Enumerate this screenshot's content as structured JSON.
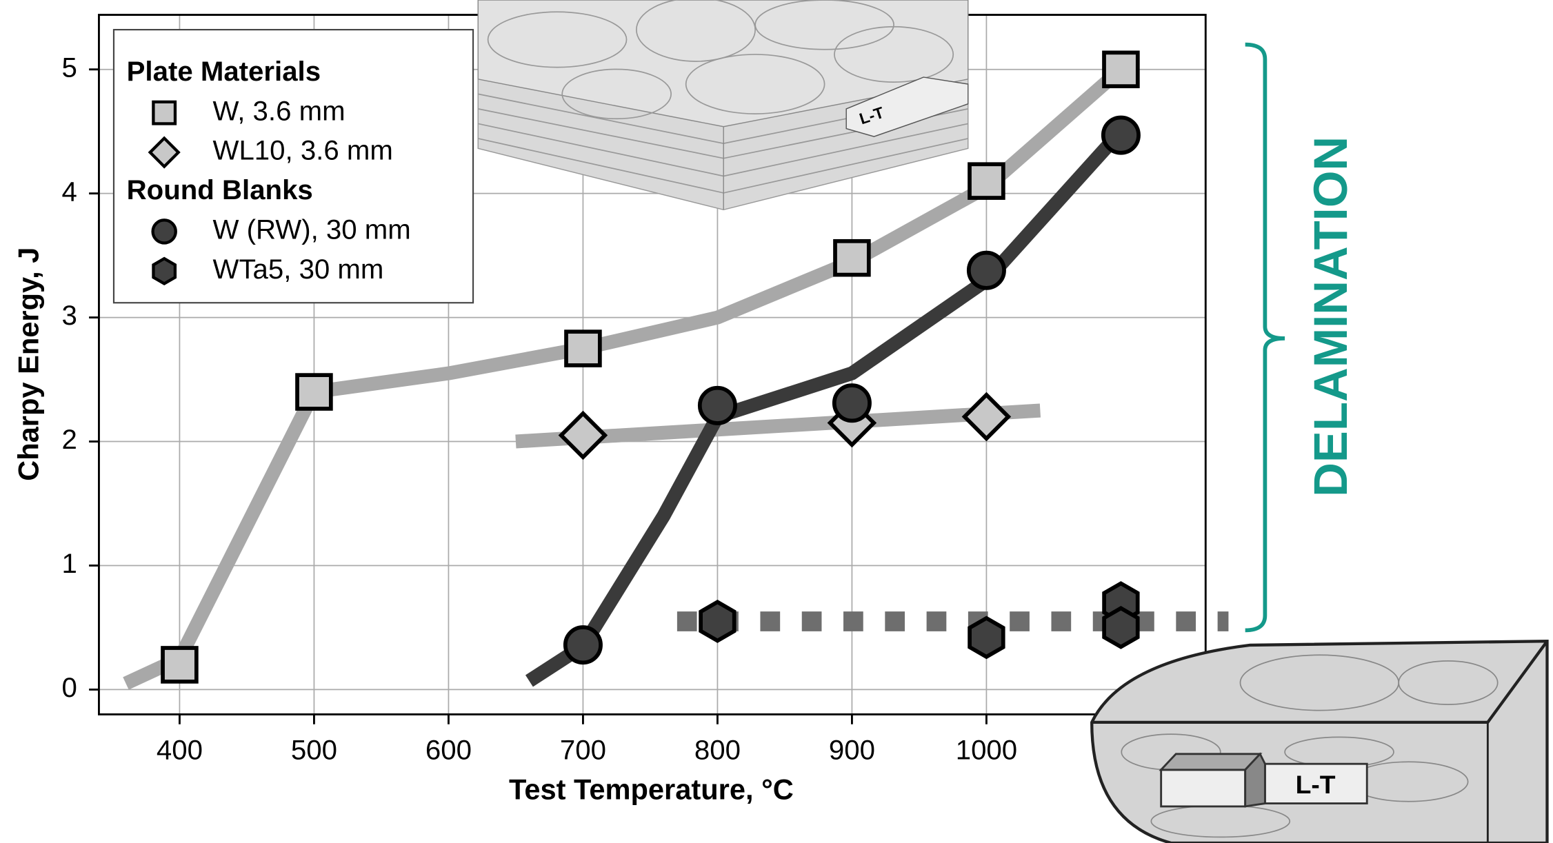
{
  "chart_data": {
    "type": "scatter",
    "x_label": "Test Temperature, °C",
    "y_label": "Charpy Energy, J",
    "xlim": [
      340,
      1163
    ],
    "ylim": [
      -0.2,
      5.44
    ],
    "xticks": [
      400,
      500,
      600,
      700,
      800,
      900,
      1000
    ],
    "yticks": [
      0,
      1,
      2,
      3,
      4,
      5
    ],
    "grid": true,
    "legend_groups": [
      "Plate Materials",
      "Round Blanks"
    ],
    "series": [
      {
        "name": "W, 3.6 mm",
        "marker": "square",
        "color": "#c8c8c8",
        "x": [
          400,
          500,
          700,
          900,
          1000,
          1100
        ],
        "values": [
          0.2,
          2.4,
          2.75,
          3.48,
          4.1,
          5.0
        ]
      },
      {
        "name": "WL10, 3.6 mm",
        "marker": "diamond",
        "color": "#c8c8c8",
        "x": [
          700,
          900,
          1000
        ],
        "values": [
          2.05,
          2.15,
          2.2
        ]
      },
      {
        "name": "W (RW), 30 mm",
        "marker": "circle",
        "color": "#404040",
        "x": [
          700,
          800,
          900,
          1000,
          1100
        ],
        "values": [
          0.36,
          2.29,
          2.31,
          3.38,
          4.47
        ]
      },
      {
        "name": "WTa5, 30 mm",
        "marker": "hexagon",
        "color": "#404040",
        "x": [
          800,
          1000,
          1100,
          1100
        ],
        "values": [
          0.55,
          0.42,
          0.7,
          0.5
        ]
      }
    ],
    "trend_lines": [
      {
        "color": "#a8a8a8",
        "dashed": false,
        "x": [
          360,
          400,
          500,
          600,
          700,
          800,
          900,
          1000,
          1100
        ],
        "y": [
          0.05,
          0.25,
          2.4,
          2.55,
          2.75,
          3.0,
          3.45,
          4.05,
          5.0
        ]
      },
      {
        "color": "#a8a8a8",
        "dashed": false,
        "x": [
          650,
          1040
        ],
        "y": [
          2.0,
          2.25
        ]
      },
      {
        "color": "#3a3a3a",
        "dashed": false,
        "x": [
          660,
          700,
          760,
          800,
          900,
          1000,
          1100
        ],
        "y": [
          0.07,
          0.35,
          1.4,
          2.2,
          2.55,
          3.3,
          4.5
        ]
      },
      {
        "color": "#6e6e6e",
        "dashed": true,
        "x": [
          770,
          1180
        ],
        "y": [
          0.55,
          0.55
        ]
      }
    ],
    "annotation": "DELAMINATION",
    "annotation_color": "#14998a",
    "insets": [
      {
        "label": "L-T"
      },
      {
        "label": "L-T"
      }
    ]
  }
}
